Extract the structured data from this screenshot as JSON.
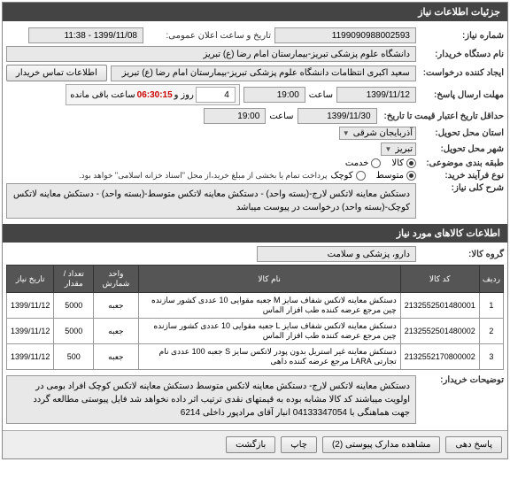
{
  "header": {
    "title": "جزئیات اطلاعات نیاز"
  },
  "need": {
    "number_label": "شماره نیاز:",
    "number": "1199090988002593",
    "public_date_label": "تاریخ و ساعت اعلان عمومی:",
    "public_date": "1399/11/08 - 11:38",
    "buyer_label": "نام دستگاه خریدار:",
    "buyer": "دانشگاه علوم پزشکی تبریز-بیمارستان امام رضا (ع) تبریز",
    "creator_label": "ایجاد کننده درخواست:",
    "creator": "سعید اکبری انتظامات دانشگاه علوم پزشکی تبریز-بیمارستان امام رضا (ع) تبریز",
    "contact_btn": "اطلاعات تماس خریدار",
    "deadline_label": "مهلت ارسال پاسخ:",
    "deadline_date": "1399/11/12",
    "time_label": "ساعت",
    "deadline_time": "19:00",
    "counter_days": "4",
    "counter_days_label": "روز و",
    "counter_time": "06:30:15",
    "counter_tail": "ساعت باقی مانده",
    "credit_label": "حداقل تاریخ اعتبار قیمت تا تاریخ:",
    "credit_date": "1399/11/30",
    "credit_time": "19:00",
    "province_label": "استان محل تحویل:",
    "province": "آذربایجان شرقی",
    "city_label": "شهر محل تحویل:",
    "city": "تبریز",
    "budget_label": "طبقه بندی موضوعی:",
    "budget_opt1": "کالا",
    "budget_opt2": "خدمت",
    "process_label": "نوع فرآیند خرید:",
    "process_opt1": "متوسط",
    "process_opt2": "کوچک",
    "process_note": "پرداخت تمام یا بخشی از مبلغ خرید،از محل \"اسناد خزانه اسلامی\" خواهد بود.",
    "general_label": "شرح کلی نیاز:",
    "general_desc": "دستکش معاینه لاتکس لارج-(بسته واحد) - دستکش معاینه لاتکس متوسط-(بسته واحد) - دستکش معاینه لاتکس کوچک-(بسته واحد) درخواست در پیوست میباشد"
  },
  "goods": {
    "header": "اطلاعات کالاهای مورد نیاز",
    "group_label": "گروه کالا:",
    "group": "دارو، پزشکی و سلامت",
    "columns": [
      "ردیف",
      "کد کالا",
      "نام کالا",
      "واحد شمارش",
      "تعداد / مقدار",
      "تاریخ نیاز"
    ],
    "rows": [
      {
        "n": "1",
        "code": "2132552501480001",
        "name": "دستکش معاینه لاتکس شفاف سایز M جعبه مقوایی 10 عددی کشور سازنده چین مرجع عرضه کننده طب افزار الماس",
        "unit": "جعبه",
        "qty": "5000",
        "date": "1399/11/12"
      },
      {
        "n": "2",
        "code": "2132552501480002",
        "name": "دستکش معاینه لاتکس شفاف سایز L جعبه مقوایی 10 عددی کشور سازنده چین مرجع عرضه کننده طب افزار الماس",
        "unit": "جعبه",
        "qty": "5000",
        "date": "1399/11/12"
      },
      {
        "n": "3",
        "code": "2132552170800002",
        "name": "دستکش معاینه غیر استریل بدون پودر لاتکس سایز S جعبه 100 عددی نام تجارتی LARA مرجع عرضه کننده داهی",
        "unit": "جعبه",
        "qty": "500",
        "date": "1399/11/12"
      }
    ],
    "buyer_note_label": "توضیحات خریدار:",
    "buyer_note": "دستکش معاینه لاتکس لارج- دستکش معاینه لاتکس متوسط دستکش معاینه لاتکس کوچک افراد بومی در اولویت میباشند کد کالا مشابه بوده به قیمتهای نقدی ترتیب اثر داده نخواهد شد فایل پیوستی مطالعه گردد جهت هماهنگی با 04133347054 انبار آقای مرادپور داخلی 6214"
  },
  "footer": {
    "reply": "پاسخ دهی",
    "attach": "مشاهده مدارک پیوستی (2)",
    "print": "چاپ",
    "back": "بازگشت"
  }
}
